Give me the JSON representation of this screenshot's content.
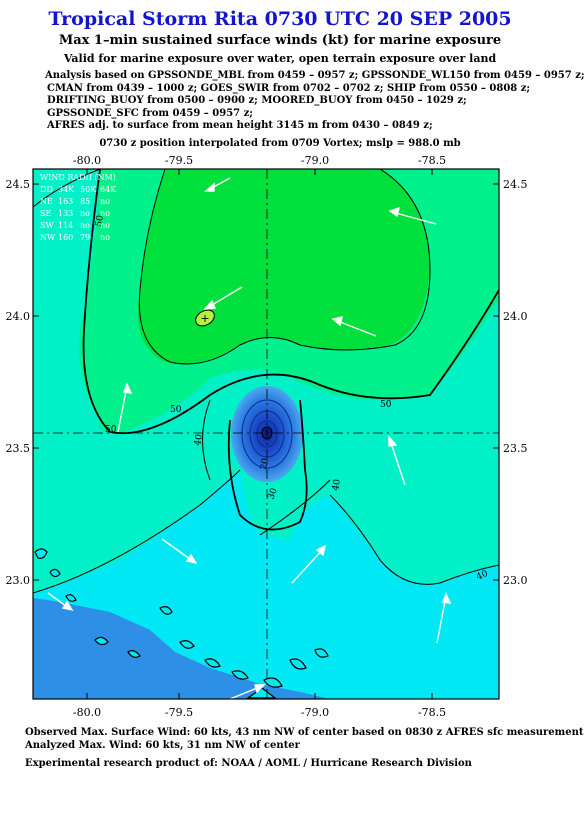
{
  "title": "Tropical Storm Rita 0730 UTC 20 SEP 2005",
  "subtitle": "Max 1–min sustained surface winds (kt) for marine exposure",
  "exposure_note": "Valid for marine exposure over water, open terrain exposure over land",
  "analysis_lines": [
    "Analysis based on  GPSSONDE_MBL from 0459 – 0957 z;  GPSSONDE_WL150 from 0459 – 0957 z;",
    "CMAN from 0439 – 1000 z;  GOES_SWIR from 0702 – 0702 z;  SHIP from 0550 – 0808 z;",
    "DRIFTING_BUOY from 0500 – 0900 z;  MOORED_BUOY from 0450 – 1029 z;",
    "GPSSONDE_SFC from 0459 – 0957 z;",
    "AFRES adj. to surface from mean height 3145 m from 0430 – 0849 z;"
  ],
  "position_note": "0730 z position interpolated from 0709 Vortex; mslp = 988.0 mb",
  "map": {
    "lon_ticks": [
      "-80.0",
      "-79.5",
      "-79.0",
      "-78.5"
    ],
    "lat_ticks": [
      "24.5",
      "24.0",
      "23.5",
      "23.0"
    ],
    "contour_labels": [
      "50",
      "50",
      "50",
      "50",
      "40",
      "40",
      "40",
      "30",
      "20"
    ],
    "colors": {
      "land": "#2d8fe6",
      "band_20": "#1e73d8",
      "band_30": "#00e8f4",
      "band_40": "#00f0c8",
      "band_50": "#00f08c",
      "band_60": "#00e03c",
      "core_dark": "#1030b0",
      "contour": "#000000",
      "wind_arrow": "#ffffff",
      "legend_text": "#ffffff"
    },
    "wind_radii": {
      "header": [
        "WIND RADII (NM)"
      ],
      "rows": [
        [
          "DD",
          "34K",
          "50K",
          "64K"
        ],
        [
          "NE",
          "163",
          "85",
          "no"
        ],
        [
          "SE",
          "133",
          "no",
          "no"
        ],
        [
          "SW",
          "114",
          "no",
          "no"
        ],
        [
          "NW",
          "160",
          "79",
          "no"
        ]
      ]
    },
    "max_wind_marker": "+"
  },
  "footer": {
    "observed": "Observed Max. Surface Wind: 60 kts, 43 nm NW of center based on 0830 z AFRES sfc measurement",
    "analyzed": "Analyzed Max. Wind: 60 kts, 31 nm NW of center",
    "credit": "Experimental research product of:  NOAA / AOML / Hurricane Research Division"
  }
}
